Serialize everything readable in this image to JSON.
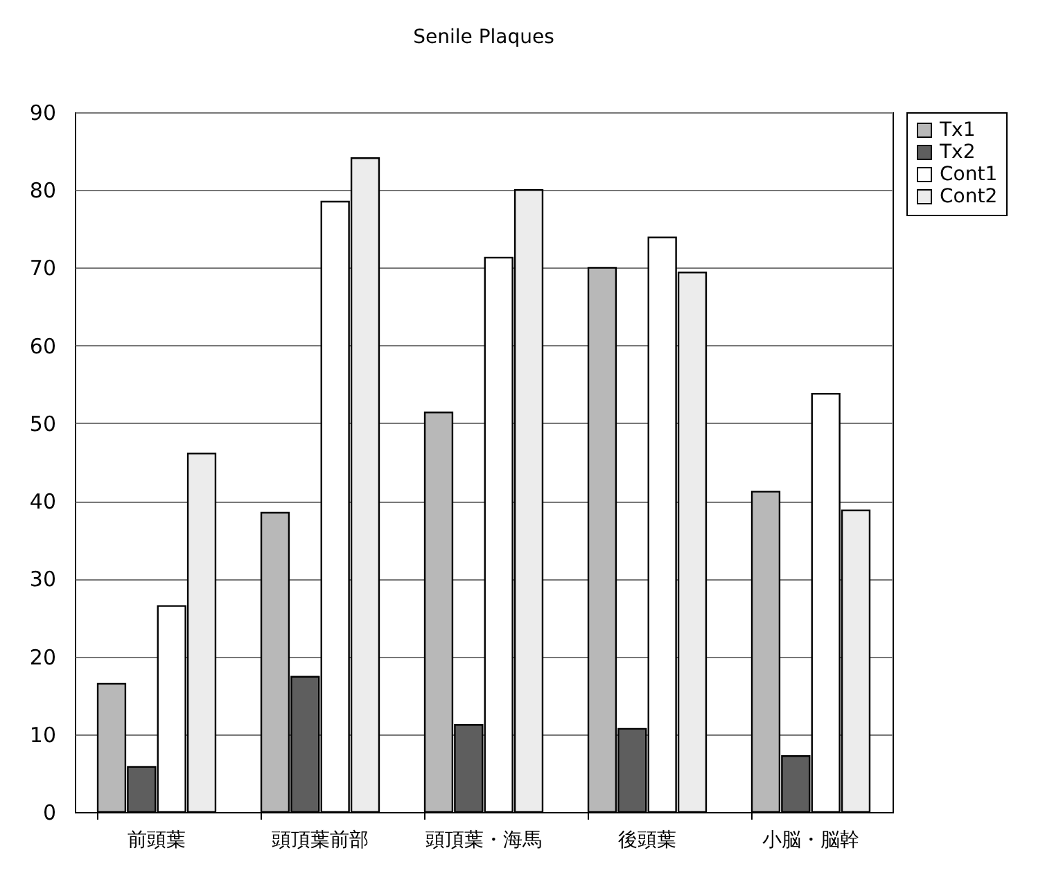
{
  "chart_data": {
    "type": "bar",
    "title": "Senile Plaques",
    "categories": [
      "前頭葉",
      "頭頂葉前部",
      "頭頂葉・海馬",
      "後頭葉",
      "小脳・脳幹"
    ],
    "series": [
      {
        "name": "Tx1",
        "color": "#b8b8b8",
        "values": [
          16.5,
          38.5,
          51.4,
          70,
          41.2
        ]
      },
      {
        "name": "Tx2",
        "color": "#5e5e5e",
        "values": [
          5.8,
          17.4,
          11.2,
          10.7,
          7.2
        ]
      },
      {
        "name": "Cont1",
        "color": "#ffffff",
        "values": [
          26.5,
          78.5,
          71.3,
          73.9,
          53.8
        ]
      },
      {
        "name": "Cont2",
        "color": "#ececec",
        "values": [
          46.1,
          84.1,
          80,
          69.4,
          38.8
        ]
      }
    ],
    "ylim": [
      0,
      90
    ],
    "yticks": [
      0,
      10,
      20,
      30,
      40,
      50,
      60,
      70,
      80,
      90
    ],
    "grid": "y",
    "legend": "right"
  }
}
